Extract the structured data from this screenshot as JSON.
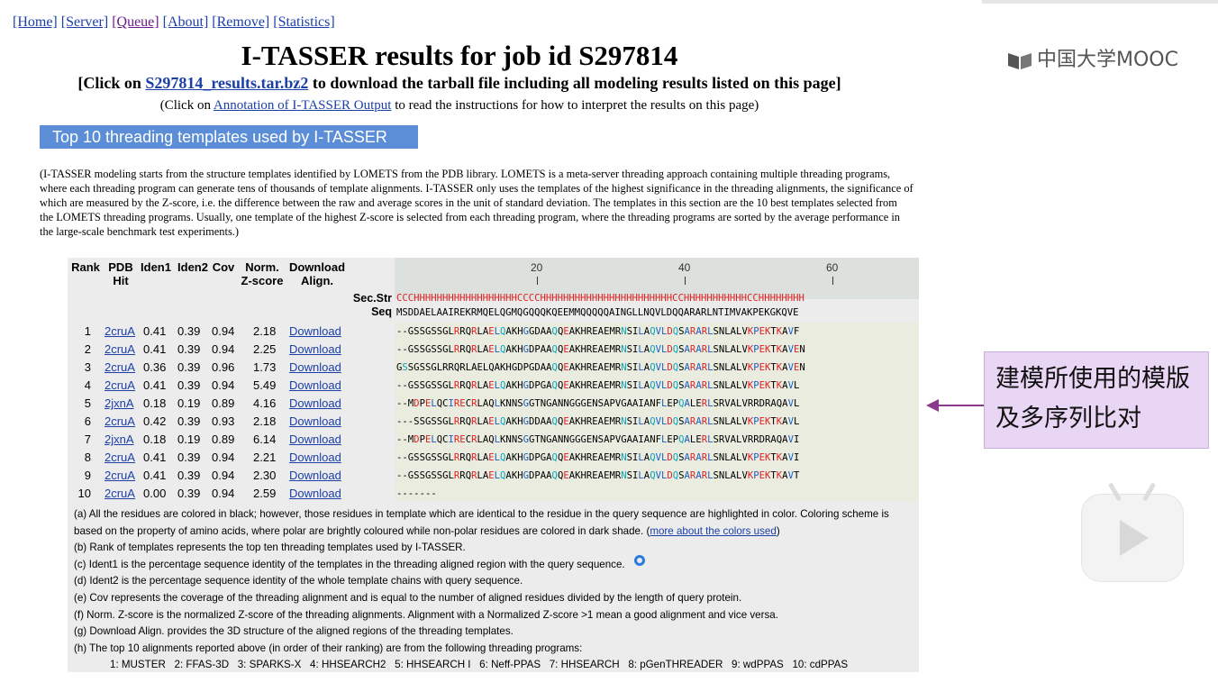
{
  "nav": [
    "[Home]",
    "[Server]",
    "[Queue]",
    "[About]",
    "[Remove]",
    "[Statistics]"
  ],
  "title": "I-TASSER results for job id S297814",
  "download_line": {
    "prefix": "[Click on ",
    "link": "S297814_results.tar.bz2",
    "suffix": " to download the tarball file including all modeling results listed on this page]"
  },
  "annotation_line": {
    "prefix": "(Click on ",
    "link": "Annotation of I-TASSER Output",
    "suffix": " to read the instructions for how to interpret the results on this page)"
  },
  "section_title": "Top 10 threading templates used by I-TASSER",
  "intro": "(I-TASSER modeling starts from the structure templates identified by LOMETS from the PDB library. LOMETS is a meta-server threading approach containing multiple threading programs, where each threading program can generate tens of thousands of template alignments. I-TASSER only uses the templates of the highest significance in the threading alignments, the significance of which are measured by the Z-score, i.e. the difference between the raw and average scores in the unit of standard deviation. The templates in this section are the 10 best templates selected from the LOMETS threading programs. Usually, one template of the highest Z-score is selected from each threading program, where the threading programs are sorted by the average performance in the large-scale benchmark test experiments.)",
  "table": {
    "headers": [
      "Rank",
      "PDB\nHit",
      "Iden1",
      "Iden2",
      "Cov",
      "Norm.\nZ-score",
      "Download\nAlign."
    ],
    "ruler": [
      "20",
      "40",
      "60"
    ],
    "sec_str_label": "Sec.Str",
    "seq_label": "Seq",
    "sec_str": "CCCHHHHHHHHHHHHHHHHHHCCCCHHHHHHHHHHHHHHHHHHHHHHHCCHHHHHHHHHHHCCHHHHHHHH",
    "seq": "MSDDAELAAIREKRMQELQGMQGQQQKQEEMMQQQQQAINGLLNQVLDQQARARLNTIMVAKPEKGKQVE",
    "rows": [
      {
        "rank": "1",
        "pdb": "2cruA",
        "iden1": "0.41",
        "iden2": "0.39",
        "cov": "0.94",
        "z": "2.18",
        "dl": "Download",
        "aln": "--GSSGSSGLRRQRLAELQAKHGGDAAQQEAKHREAEMRNSILAQVLDQSARARLSNLALVKPEKTKAVF"
      },
      {
        "rank": "2",
        "pdb": "2cruA",
        "iden1": "0.41",
        "iden2": "0.39",
        "cov": "0.94",
        "z": "2.25",
        "dl": "Download",
        "aln": "--GSSGSSGLRRQRLAELQAKHGDPAAQQEAKHREAEMRNSILAQVLDQSARARLSNLALVKPEKTKAVEN"
      },
      {
        "rank": "3",
        "pdb": "2cruA",
        "iden1": "0.36",
        "iden2": "0.39",
        "cov": "0.96",
        "z": "1.73",
        "dl": "Download",
        "aln": "GSSGSSGLRRQRLAELQAKHGDPGDAAQQEAKHREAEMRNSILAQVLDQSARARLSNLALVKPEKTKAVEN"
      },
      {
        "rank": "4",
        "pdb": "2cruA",
        "iden1": "0.41",
        "iden2": "0.39",
        "cov": "0.94",
        "z": "5.49",
        "dl": "Download",
        "aln": "--GSSGSSGLRRQRLAELQAKHGDPGAQQEAKHREAEMRNSILAQVLDQSARARLSNLALVKPEKTKAVL"
      },
      {
        "rank": "5",
        "pdb": "2jxnA",
        "iden1": "0.18",
        "iden2": "0.19",
        "cov": "0.89",
        "z": "4.16",
        "dl": "Download",
        "aln": "--MDPELQCIRECRLAQLKNNSGGTNGANNGGGENSAPVGAAIANFLEPQALERLSRVALVRRDRAQAVL"
      },
      {
        "rank": "6",
        "pdb": "2cruA",
        "iden1": "0.42",
        "iden2": "0.39",
        "cov": "0.93",
        "z": "2.18",
        "dl": "Download",
        "aln": "---SSGSSGLRRQRLAELQAKHGDDAAQQEAKHREAEMRNSILAQVLDQSARARLSNLALVKPEKTKAVL"
      },
      {
        "rank": "7",
        "pdb": "2jxnA",
        "iden1": "0.18",
        "iden2": "0.19",
        "cov": "0.89",
        "z": "6.14",
        "dl": "Download",
        "aln": "--MDPELQCIRECRLAQLKNNSGGTNGANNGGGENSAPVGAAIANFLEPQALERLSRVALVRRDRAQAVI"
      },
      {
        "rank": "8",
        "pdb": "2cruA",
        "iden1": "0.41",
        "iden2": "0.39",
        "cov": "0.94",
        "z": "2.21",
        "dl": "Download",
        "aln": "--GSSGSSGLRRQRLAELQAKHGDPGAQQEAKHREAEMRNSILAQVLDQSARARLSNLALVKPEKTKAVI"
      },
      {
        "rank": "9",
        "pdb": "2cruA",
        "iden1": "0.41",
        "iden2": "0.39",
        "cov": "0.94",
        "z": "2.30",
        "dl": "Download",
        "aln": "--GSSGSSGLRRQRLAELQAKHGDPAAQQEAKHREAEMRNSILAQVLDQSARARLSNLALVKPEKTKAVT"
      },
      {
        "rank": "10",
        "pdb": "2cruA",
        "iden1": "0.00",
        "iden2": "0.39",
        "cov": "0.94",
        "z": "2.59",
        "dl": "Download",
        "aln": "-------"
      }
    ]
  },
  "notes": {
    "a_text": "(a) All the residues are colored in black; however, those residues in template which are identical to the residue in the query sequence are highlighted in color. Coloring scheme is based on the property of amino acids, where polar are brightly coloured while non-polar residues are colored in dark shade. (",
    "a_link": "more about the colors used",
    "a_end": ")",
    "b": "(b) Rank of templates represents the top ten threading templates used by I-TASSER.",
    "c": "(c) Ident1 is the percentage sequence identity of the templates in the threading aligned region with the query sequence.",
    "d": "(d) Ident2 is the percentage sequence identity of the whole template chains with query sequence.",
    "e": "(e) Cov represents the coverage of the threading alignment and is equal to the number of aligned residues divided by the length of query protein.",
    "f": "(f)  Norm. Z-score is the normalized Z-score of the threading alignments. Alignment with a Normalized Z-score >1 mean a good alignment and vice versa.",
    "g": "(g) Download Align. provides the 3D structure of the aligned regions of the threading templates.",
    "h": "(h) The top 10 alignments reported above (in order of their ranking) are from the following threading programs:",
    "programs": "1: MUSTER   2: FFAS-3D   3: SPARKS-X   4: HHSEARCH2   5: HHSEARCH I   6: Neff-PPAS   7: HHSEARCH   8: pGenTHREADER   9: wdPPAS   10: cdPPAS"
  },
  "watermark": "中国大学MOOC",
  "callout": "建模所使用的模版及多序列比对",
  "colors": {
    "accent": "#5b8ed6",
    "helix": "#e02020",
    "callout_bg": "#e9d6f4",
    "arrow": "#8b3a8b"
  },
  "icons": [
    "mooc-logo-icon",
    "play-icon",
    "arrow-left-icon"
  ]
}
